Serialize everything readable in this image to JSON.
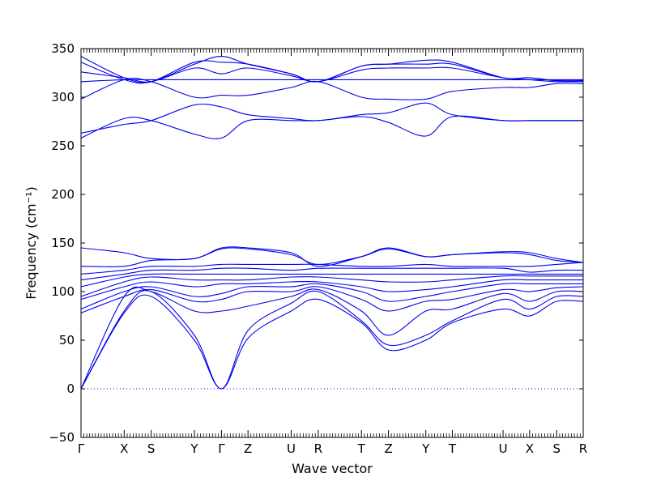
{
  "chart_data": {
    "type": "line",
    "title": "",
    "xlabel": "Wave vector",
    "ylabel": "Frequency (cm⁻¹)",
    "ylim": [
      -50,
      350
    ],
    "yticks": [
      -50,
      0,
      50,
      100,
      150,
      200,
      250,
      300,
      350
    ],
    "high_symbol_points": [
      {
        "label": "Γ",
        "x": 0.0
      },
      {
        "label": "X",
        "x": 0.882
      },
      {
        "label": "S",
        "x": 1.435
      },
      {
        "label": "Y",
        "x": 2.318
      },
      {
        "label": "Γ",
        "x": 2.871
      },
      {
        "label": "Z",
        "x": 3.413
      },
      {
        "label": "U",
        "x": 4.296
      },
      {
        "label": "R",
        "x": 4.849
      },
      {
        "label": "T",
        "x": 5.731
      },
      {
        "label": "Z",
        "x": 6.284
      },
      {
        "label": "Y",
        "x": 7.047
      },
      {
        "label": "T",
        "x": 7.59
      },
      {
        "label": "U",
        "x": 8.626
      },
      {
        "label": "X",
        "x": 9.169
      },
      {
        "label": "S",
        "x": 9.722
      },
      {
        "label": "R",
        "x": 10.264
      }
    ],
    "zero_line": true,
    "line_color": "#0000ee",
    "series": [
      {
        "x": [
          0.0,
          0.882,
          1.435,
          2.318,
          2.871,
          3.413,
          4.296,
          4.849,
          5.731,
          6.284,
          7.047,
          7.59,
          8.626,
          9.169,
          9.722,
          10.264
        ],
        "values": [
          0,
          78,
          95,
          50,
          0,
          52,
          80,
          92,
          68,
          40,
          50,
          68,
          82,
          75,
          90,
          90
        ]
      },
      {
        "x": [
          0.0,
          0.882,
          1.435,
          2.318,
          2.871,
          3.413,
          4.296,
          4.849,
          5.731,
          6.284,
          7.047,
          7.59,
          8.626,
          9.169,
          9.722,
          10.264
        ],
        "values": [
          0,
          80,
          100,
          55,
          0,
          60,
          88,
          100,
          70,
          45,
          55,
          70,
          92,
          82,
          95,
          95
        ]
      },
      {
        "x": [
          0.0,
          0.882,
          1.435,
          2.318,
          2.871,
          3.413,
          4.296,
          4.849,
          5.731,
          6.284,
          7.047,
          7.59,
          8.626,
          9.169,
          9.722,
          10.264
        ],
        "values": [
          0,
          95,
          100,
          80,
          80,
          85,
          95,
          102,
          80,
          55,
          80,
          82,
          98,
          90,
          100,
          100
        ]
      },
      {
        "x": [
          0.0,
          0.882,
          1.435,
          2.318,
          2.871,
          3.413,
          4.296,
          4.849,
          5.731,
          6.284,
          7.047,
          7.59,
          8.626,
          9.169,
          9.722,
          10.264
        ],
        "values": [
          78,
          95,
          102,
          90,
          92,
          100,
          100,
          105,
          92,
          80,
          90,
          92,
          102,
          100,
          104,
          105
        ]
      },
      {
        "x": [
          0.0,
          0.882,
          1.435,
          2.318,
          2.871,
          3.413,
          4.296,
          4.849,
          5.731,
          6.284,
          7.047,
          7.59,
          8.626,
          9.169,
          9.722,
          10.264
        ],
        "values": [
          82,
          100,
          105,
          95,
          98,
          105,
          105,
          108,
          100,
          90,
          95,
          100,
          108,
          108,
          108,
          108
        ]
      },
      {
        "x": [
          0.0,
          0.882,
          1.435,
          2.318,
          2.871,
          3.413,
          4.296,
          4.849,
          5.731,
          6.284,
          7.047,
          7.59,
          8.626,
          9.169,
          9.722,
          10.264
        ],
        "values": [
          92,
          105,
          110,
          105,
          108,
          108,
          110,
          110,
          105,
          100,
          102,
          105,
          112,
          112,
          112,
          112
        ]
      },
      {
        "x": [
          0.0,
          0.882,
          1.435,
          2.318,
          2.871,
          3.413,
          4.296,
          4.849,
          5.731,
          6.284,
          7.047,
          7.59,
          8.626,
          9.169,
          9.722,
          10.264
        ],
        "values": [
          95,
          110,
          115,
          112,
          112,
          112,
          115,
          115,
          112,
          110,
          110,
          112,
          116,
          116,
          116,
          116
        ]
      },
      {
        "x": [
          0.0,
          0.882,
          1.435,
          2.318,
          2.871,
          3.413,
          4.296,
          4.849,
          5.731,
          6.284,
          7.047,
          7.59,
          8.626,
          9.169,
          9.722,
          10.264
        ],
        "values": [
          105,
          115,
          118,
          118,
          118,
          118,
          118,
          118,
          118,
          118,
          118,
          118,
          118,
          118,
          118,
          118
        ]
      },
      {
        "x": [
          0.0,
          0.882,
          1.435,
          2.318,
          2.871,
          3.413,
          4.296,
          4.849,
          5.731,
          6.284,
          7.047,
          7.59,
          8.626,
          9.169,
          9.722,
          10.264
        ],
        "values": [
          112,
          118,
          122,
          122,
          124,
          124,
          122,
          124,
          124,
          124,
          124,
          124,
          124,
          120,
          122,
          122
        ]
      },
      {
        "x": [
          0.0,
          0.882,
          1.435,
          2.318,
          2.871,
          3.413,
          4.296,
          4.849,
          5.731,
          6.284,
          7.047,
          7.59,
          8.626,
          9.169,
          9.722,
          10.264
        ],
        "values": [
          118,
          122,
          126,
          126,
          128,
          128,
          128,
          128,
          126,
          126,
          128,
          126,
          126,
          126,
          128,
          130
        ]
      },
      {
        "x": [
          0.0,
          0.882,
          1.435,
          2.318,
          2.871,
          3.413,
          4.296,
          4.849,
          5.731,
          6.284,
          7.047,
          7.59,
          8.626,
          9.169,
          9.722,
          10.264
        ],
        "values": [
          126,
          126,
          132,
          134,
          144,
          144,
          138,
          128,
          136,
          144,
          136,
          138,
          140,
          138,
          132,
          130
        ]
      },
      {
        "x": [
          0.0,
          0.882,
          1.435,
          2.318,
          2.871,
          3.413,
          4.296,
          4.849,
          5.731,
          6.284,
          7.047,
          7.59,
          8.626,
          9.169,
          9.722,
          10.264
        ],
        "values": [
          145,
          140,
          134,
          134,
          145,
          145,
          140,
          126,
          136,
          145,
          136,
          138,
          141,
          140,
          134,
          130
        ]
      },
      {
        "x": [
          0.0,
          0.882,
          1.435,
          2.318,
          2.871,
          3.413,
          4.296,
          4.849,
          5.731,
          6.284,
          7.047,
          7.59,
          8.626,
          9.169,
          9.722,
          10.264
        ],
        "values": [
          258,
          278,
          276,
          262,
          258,
          276,
          276,
          276,
          280,
          274,
          260,
          280,
          276,
          276,
          276,
          276
        ]
      },
      {
        "x": [
          0.0,
          0.882,
          1.435,
          2.318,
          2.871,
          3.413,
          4.296,
          4.849,
          5.731,
          6.284,
          7.047,
          7.59,
          8.626,
          9.169,
          9.722,
          10.264
        ],
        "values": [
          263,
          272,
          276,
          292,
          290,
          282,
          278,
          276,
          282,
          284,
          294,
          282,
          276,
          276,
          276,
          276
        ]
      },
      {
        "x": [
          0.0,
          0.882,
          1.435,
          2.318,
          2.871,
          3.413,
          4.296,
          4.849,
          5.731,
          6.284,
          7.047,
          7.59,
          8.626,
          9.169,
          9.722,
          10.264
        ],
        "values": [
          298,
          318,
          316,
          300,
          302,
          302,
          310,
          316,
          300,
          298,
          298,
          306,
          310,
          310,
          314,
          314
        ]
      },
      {
        "x": [
          0.0,
          0.882,
          1.435,
          2.318,
          2.871,
          3.413,
          4.296,
          4.849,
          5.731,
          6.284,
          7.047,
          7.59,
          8.626,
          9.169,
          9.722,
          10.264
        ],
        "values": [
          316,
          318,
          318,
          318,
          318,
          318,
          318,
          318,
          318,
          318,
          318,
          318,
          318,
          318,
          318,
          318
        ]
      },
      {
        "x": [
          0.0,
          0.882,
          1.435,
          2.318,
          2.871,
          3.413,
          4.296,
          4.849,
          5.731,
          6.284,
          7.047,
          7.59,
          8.626,
          9.169,
          9.722,
          10.264
        ],
        "values": [
          326,
          320,
          316,
          330,
          324,
          330,
          322,
          316,
          328,
          330,
          330,
          330,
          320,
          318,
          316,
          316
        ]
      },
      {
        "x": [
          0.0,
          0.882,
          1.435,
          2.318,
          2.871,
          3.413,
          4.296,
          4.849,
          5.731,
          6.284,
          7.047,
          7.59,
          8.626,
          9.169,
          9.722,
          10.264
        ],
        "values": [
          336,
          318,
          316,
          336,
          336,
          334,
          324,
          316,
          332,
          334,
          334,
          334,
          320,
          320,
          317,
          317
        ]
      },
      {
        "x": [
          0.0,
          0.882,
          1.435,
          2.318,
          2.871,
          3.413,
          4.296,
          4.849,
          5.731,
          6.284,
          7.047,
          7.59,
          8.626,
          9.169,
          9.722,
          10.264
        ],
        "values": [
          342,
          320,
          316,
          334,
          342,
          334,
          324,
          316,
          332,
          334,
          338,
          336,
          320,
          320,
          317,
          317
        ]
      }
    ]
  }
}
